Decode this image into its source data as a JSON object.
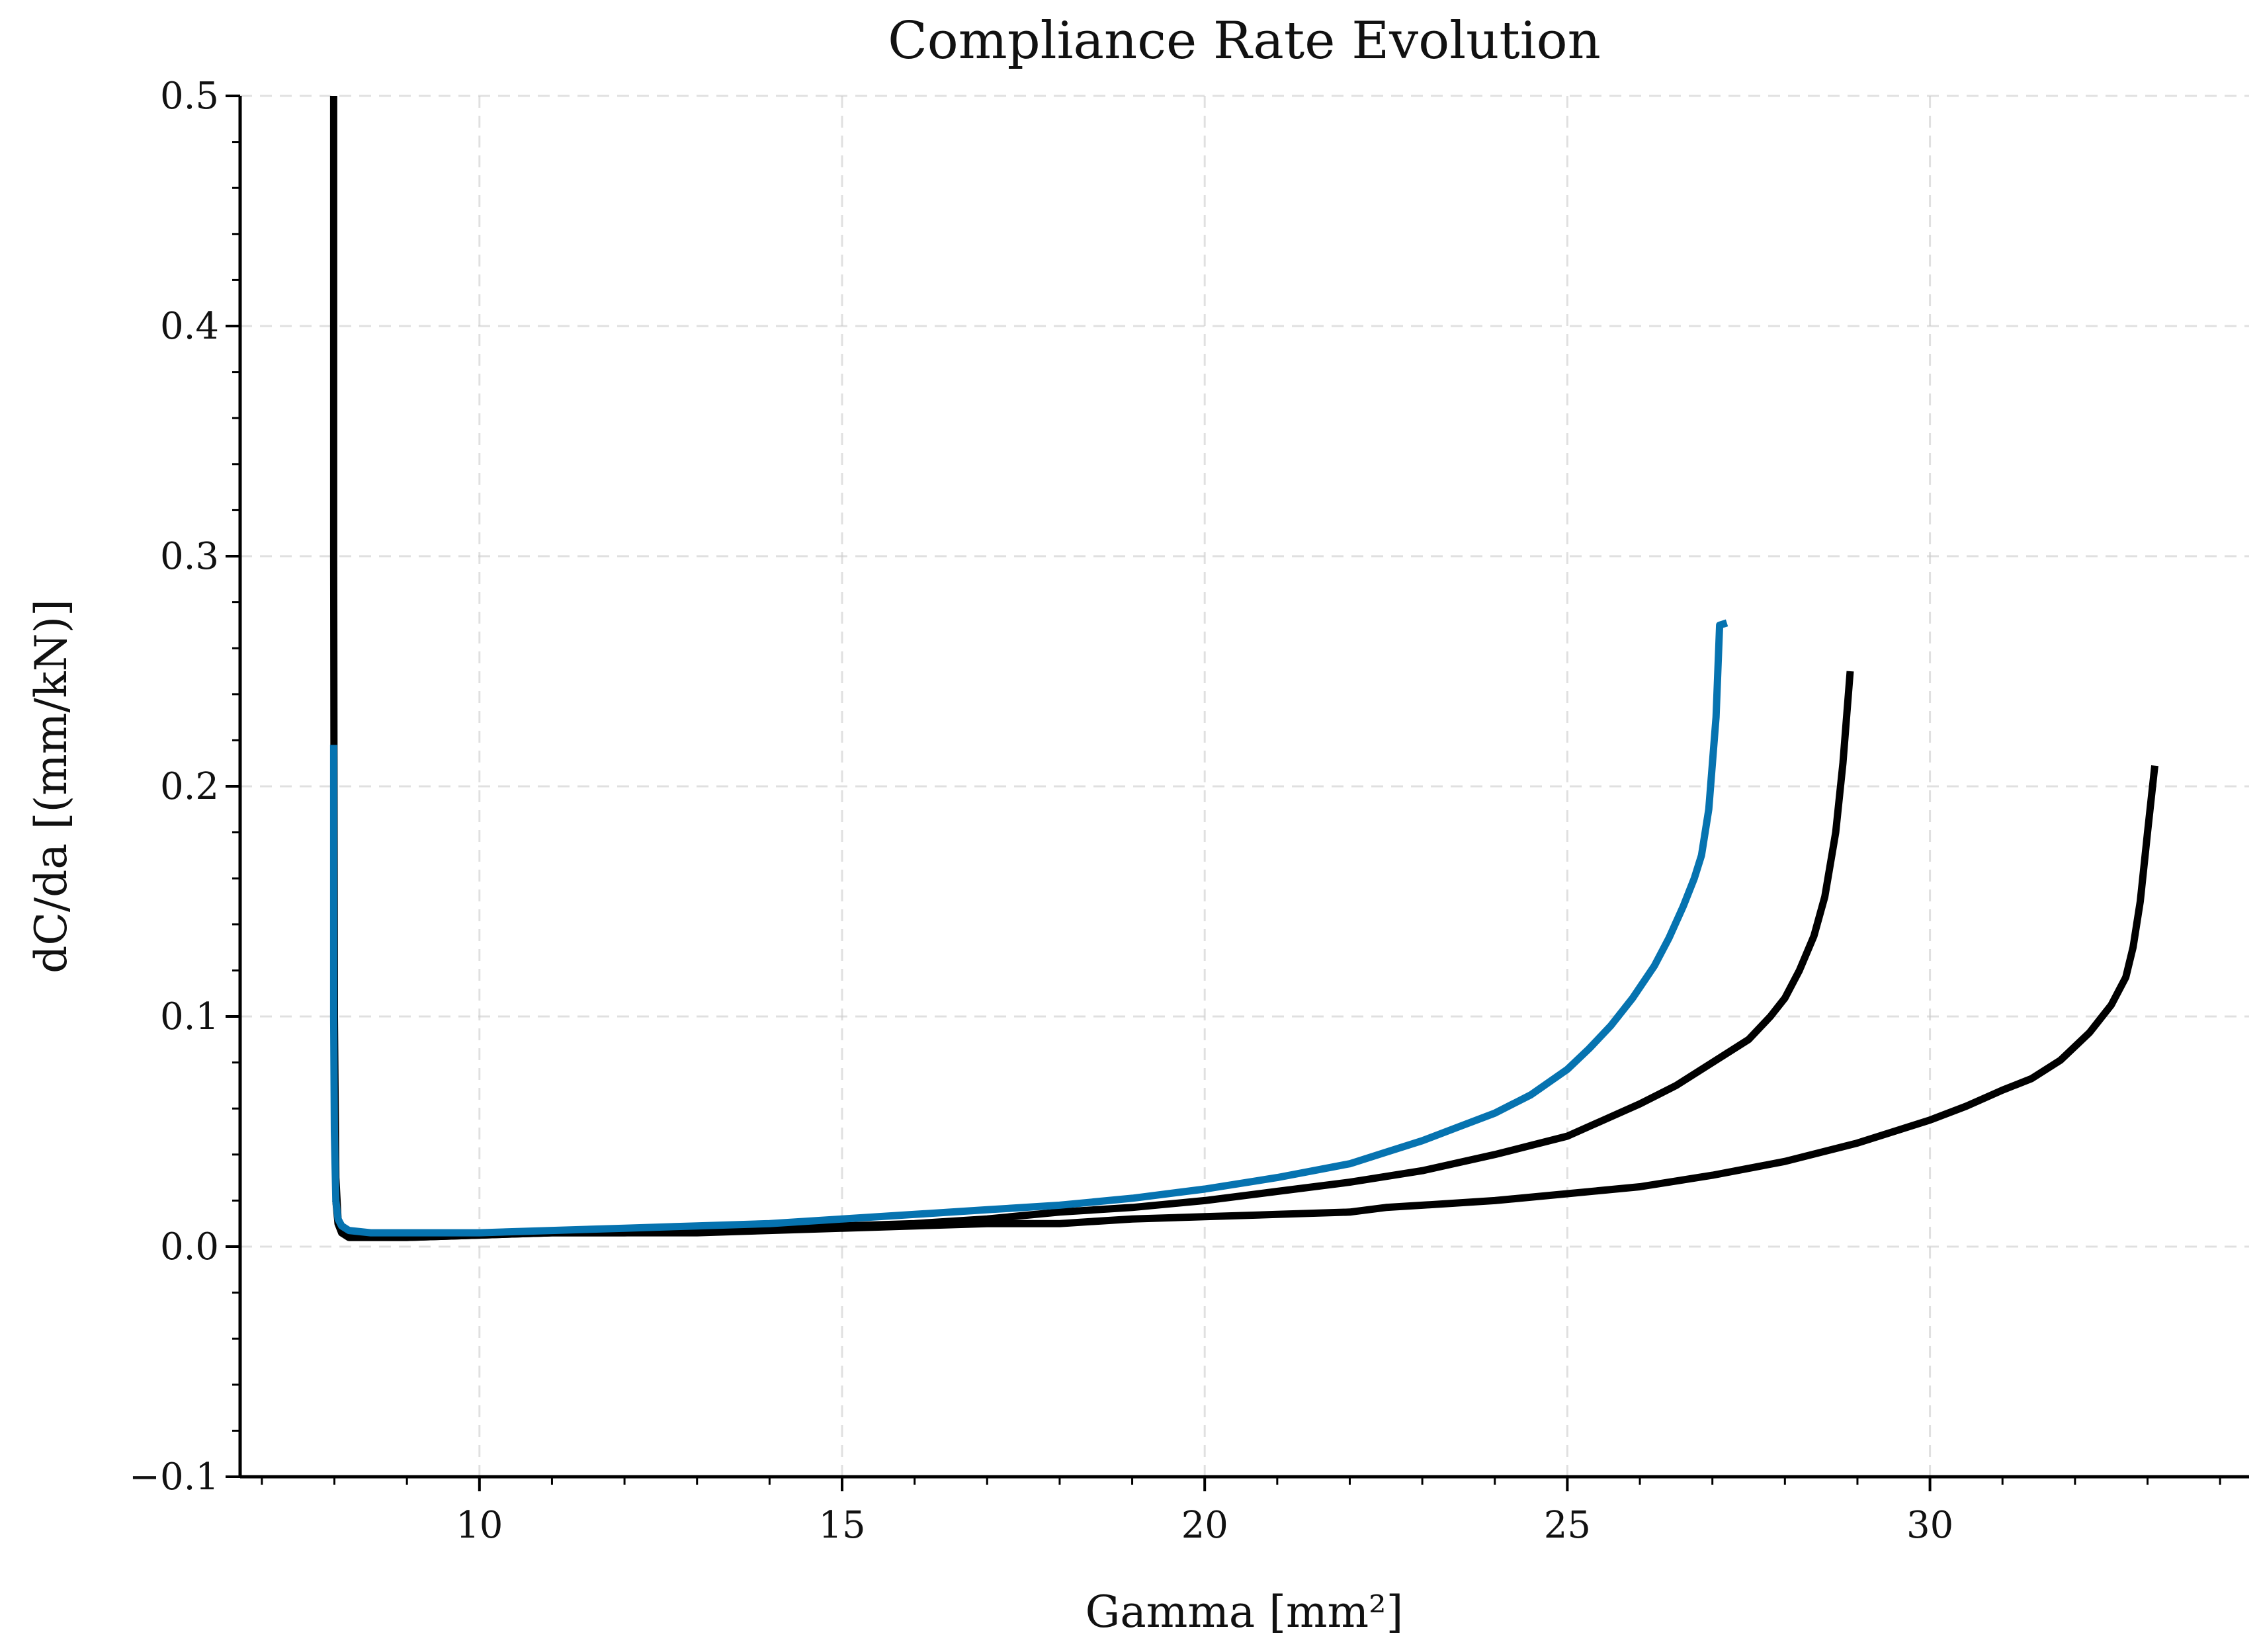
{
  "chart_data": {
    "type": "line",
    "title": "Compliance Rate Evolution",
    "xlabel": "Gamma [mm²]",
    "ylabel": "dC/da [(mm/kN)]",
    "xlim": [
      6.7,
      34.4
    ],
    "ylim": [
      -0.1,
      0.5
    ],
    "xticks": [
      10,
      15,
      20,
      25,
      30
    ],
    "xtick_labels": [
      "10",
      "15",
      "20",
      "25",
      "30"
    ],
    "yticks": [
      -0.1,
      0.0,
      0.1,
      0.2,
      0.3,
      0.4,
      0.5
    ],
    "ytick_labels": [
      "−0.1",
      "0.0",
      "0.1",
      "0.2",
      "0.3",
      "0.4",
      "0.5"
    ],
    "grid": true,
    "series": [
      {
        "color": "#000000",
        "x": [
          7.99,
          7.99,
          8.0,
          8.02,
          8.05,
          8.1,
          8.2,
          8.5,
          9.0,
          10.0,
          11.0,
          12.0,
          13.0,
          14.0,
          15.0,
          16.0,
          17.0,
          18.0,
          19.0,
          20.0,
          21.0,
          22.0,
          22.5,
          23.0,
          24.0,
          25.0,
          26.0,
          27.0,
          28.0,
          28.5,
          29.0,
          29.5,
          30.0,
          30.5,
          31.0,
          31.4,
          31.8,
          32.2,
          32.5,
          32.7,
          32.8,
          32.9,
          33.0,
          33.1
        ],
        "y": [
          0.5,
          0.3,
          0.1,
          0.03,
          0.012,
          0.006,
          0.004,
          0.004,
          0.004,
          0.005,
          0.006,
          0.006,
          0.006,
          0.007,
          0.008,
          0.009,
          0.01,
          0.01,
          0.012,
          0.013,
          0.014,
          0.015,
          0.017,
          0.018,
          0.02,
          0.023,
          0.026,
          0.031,
          0.037,
          0.041,
          0.045,
          0.05,
          0.055,
          0.061,
          0.068,
          0.073,
          0.081,
          0.093,
          0.105,
          0.117,
          0.13,
          0.15,
          0.18,
          0.209
        ]
      },
      {
        "color": "#000000",
        "x": [
          8.02,
          8.05,
          8.1,
          8.2,
          8.5,
          9.0,
          10.0,
          11.0,
          12.0,
          13.0,
          14.0,
          15.0,
          16.0,
          17.0,
          18.0,
          19.0,
          20.0,
          21.0,
          22.0,
          23.0,
          24.0,
          25.0,
          25.5,
          26.0,
          26.5,
          27.0,
          27.5,
          27.8,
          28.0,
          28.2,
          28.4,
          28.55,
          28.7,
          28.8,
          28.9
        ],
        "y": [
          0.02,
          0.01,
          0.006,
          0.004,
          0.004,
          0.004,
          0.005,
          0.006,
          0.006,
          0.007,
          0.008,
          0.009,
          0.01,
          0.012,
          0.015,
          0.017,
          0.02,
          0.024,
          0.028,
          0.033,
          0.04,
          0.048,
          0.055,
          0.062,
          0.07,
          0.08,
          0.09,
          0.1,
          0.108,
          0.12,
          0.135,
          0.152,
          0.18,
          0.21,
          0.25
        ]
      },
      {
        "color": "#0673b0",
        "x": [
          7.99,
          7.99,
          8.0,
          8.02,
          8.05,
          8.1,
          8.2,
          8.5,
          9.0,
          10.0,
          11.0,
          12.0,
          13.0,
          14.0,
          15.0,
          16.0,
          17.0,
          18.0,
          19.0,
          20.0,
          21.0,
          22.0,
          22.5,
          23.0,
          23.5,
          24.0,
          24.5,
          25.0,
          25.3,
          25.6,
          25.9,
          26.2,
          26.4,
          26.6,
          26.75,
          26.85,
          26.95,
          27.0,
          27.05,
          27.1,
          27.2
        ],
        "y": [
          0.218,
          0.1,
          0.05,
          0.02,
          0.012,
          0.009,
          0.007,
          0.006,
          0.006,
          0.006,
          0.007,
          0.008,
          0.009,
          0.01,
          0.012,
          0.014,
          0.016,
          0.018,
          0.021,
          0.025,
          0.03,
          0.036,
          0.041,
          0.046,
          0.052,
          0.058,
          0.066,
          0.077,
          0.086,
          0.096,
          0.108,
          0.122,
          0.134,
          0.148,
          0.16,
          0.17,
          0.19,
          0.21,
          0.23,
          0.27,
          0.271
        ]
      }
    ]
  }
}
